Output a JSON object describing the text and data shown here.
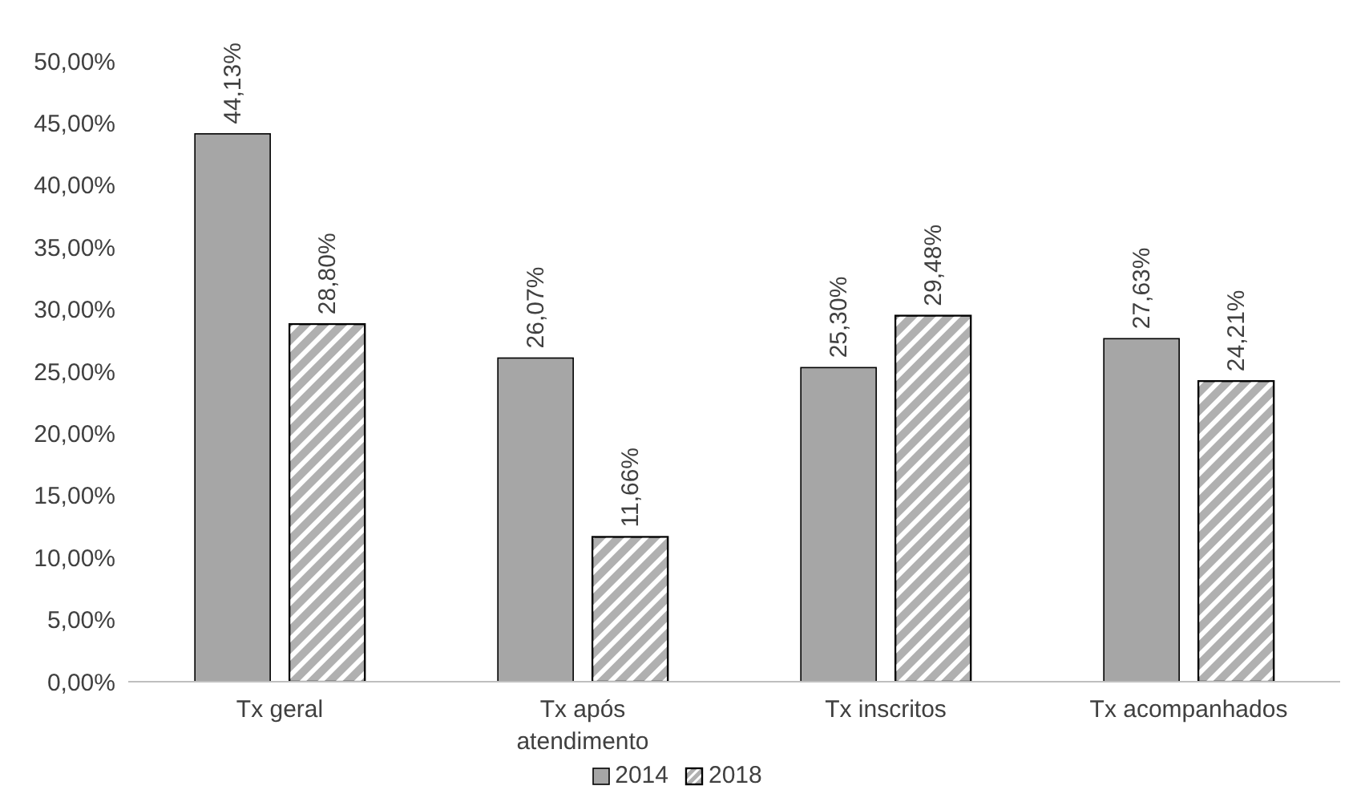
{
  "chart_data": {
    "type": "bar",
    "categories": [
      "Tx geral",
      "Tx após atendimento",
      "Tx inscritos",
      "Tx acompanhados"
    ],
    "series": [
      {
        "name": "2014",
        "color": "#a6a6a6",
        "values": [
          44.13,
          26.07,
          25.3,
          27.63
        ],
        "value_labels": [
          "44,13%",
          "26,07%",
          "25,30%",
          "27,63%"
        ]
      },
      {
        "name": "2018",
        "color": "#b0b0b0",
        "values": [
          28.8,
          11.66,
          29.48,
          24.21
        ],
        "value_labels": [
          "28,80%",
          "11,66%",
          "29,48%",
          "24,21%"
        ]
      }
    ],
    "ylim": [
      0,
      50
    ],
    "yticks": [
      {
        "value": 0,
        "label": "0,00%"
      },
      {
        "value": 5,
        "label": "5,00%"
      },
      {
        "value": 10,
        "label": "10,00%"
      },
      {
        "value": 15,
        "label": "15,00%"
      },
      {
        "value": 20,
        "label": "20,00%"
      },
      {
        "value": 25,
        "label": "25,00%"
      },
      {
        "value": 30,
        "label": "30,00%"
      },
      {
        "value": 35,
        "label": "35,00%"
      },
      {
        "value": 40,
        "label": "40,00%"
      },
      {
        "value": 45,
        "label": "45,00%"
      },
      {
        "value": 50,
        "label": "50,00%"
      }
    ],
    "grid": false,
    "legend": "bottom"
  }
}
